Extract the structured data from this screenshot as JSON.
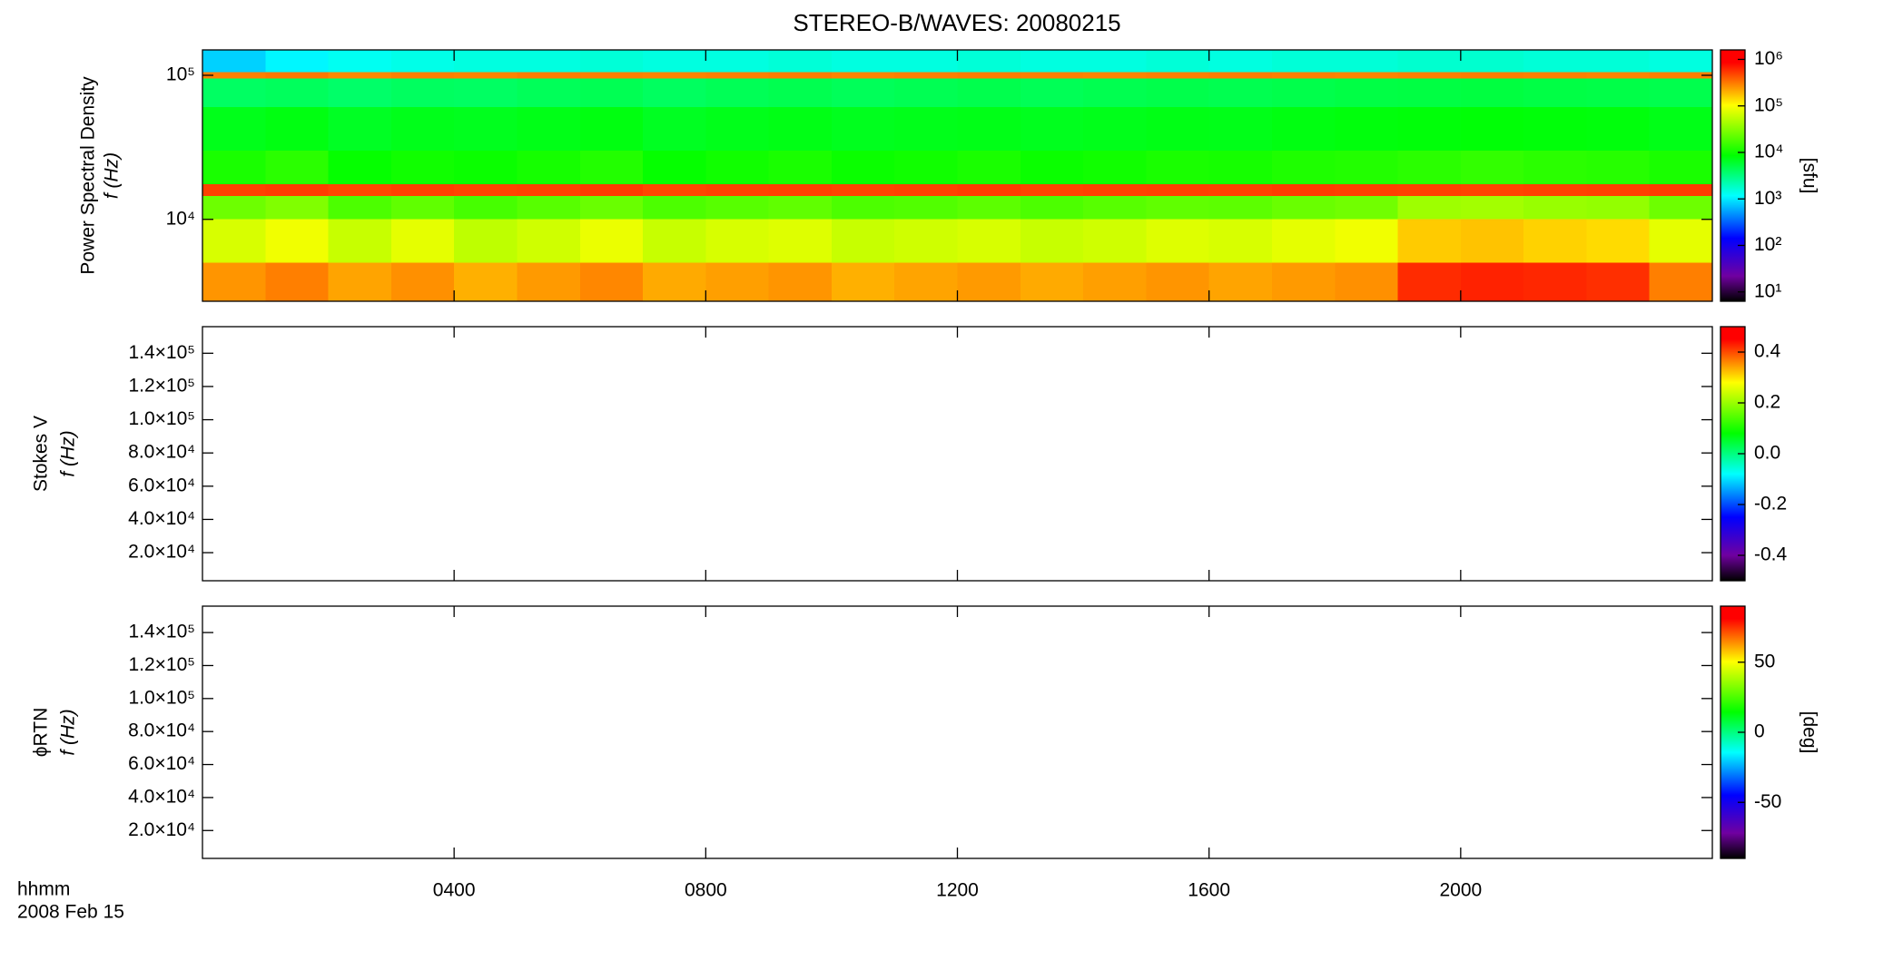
{
  "title": "STEREO-B/WAVES: 20080215",
  "time_axis": {
    "xlim": [
      0,
      24
    ],
    "xticks": [
      {
        "value": 4,
        "label": "0400"
      },
      {
        "value": 8,
        "label": "0800"
      },
      {
        "value": 12,
        "label": "1200"
      },
      {
        "value": 16,
        "label": "1600"
      },
      {
        "value": 20,
        "label": "2000"
      }
    ],
    "label": "hhmm",
    "date": "2008 Feb 15"
  },
  "chart_data": [
    {
      "type": "heatmap",
      "ylabel": "Power Spectral Density",
      "yunit": "f (Hz)",
      "ylog": true,
      "ylim": [
        2700,
        150000
      ],
      "yticks": [
        {
          "value": 10000,
          "label": "10⁴"
        },
        {
          "value": 100000,
          "label": "10⁵"
        }
      ],
      "x_bins": [
        0,
        1,
        2,
        3,
        4,
        5,
        6,
        7,
        8,
        9,
        10,
        11,
        12,
        13,
        14,
        15,
        16,
        17,
        18,
        19,
        20,
        21,
        22,
        23,
        24
      ],
      "y_bins": [
        2700,
        5000,
        10000,
        14500,
        17500,
        30000,
        60000,
        95000,
        105000,
        150000
      ],
      "z": [
        [
          250000,
          300000,
          220000,
          260000,
          200000,
          240000,
          280000,
          210000,
          230000,
          250000,
          200000,
          220000,
          240000,
          210000,
          230000,
          250000,
          220000,
          240000,
          260000,
          600000,
          650000,
          620000,
          580000,
          300000
        ],
        [
          70000,
          90000,
          60000,
          80000,
          55000,
          65000,
          85000,
          60000,
          70000,
          75000,
          60000,
          65000,
          70000,
          60000,
          65000,
          75000,
          70000,
          80000,
          90000,
          160000,
          170000,
          150000,
          140000,
          80000
        ],
        [
          25000,
          30000,
          18000,
          22000,
          17000,
          20000,
          24000,
          18000,
          20000,
          22000,
          18000,
          19000,
          21000,
          18000,
          20000,
          22000,
          21000,
          24000,
          26000,
          40000,
          42000,
          38000,
          36000,
          25000
        ],
        [
          500000,
          520000,
          480000,
          510000,
          490000,
          500000,
          530000,
          480000,
          500000,
          510000,
          490000,
          500000,
          520000,
          490000,
          500000,
          510000,
          500000,
          520000,
          510000,
          500000,
          490000,
          500000,
          510000,
          520000
        ],
        [
          11000,
          13000,
          9000,
          10000,
          9500,
          10500,
          12000,
          9000,
          10000,
          11000,
          9500,
          10000,
          11000,
          9500,
          10000,
          11000,
          10500,
          11500,
          12000,
          13000,
          14000,
          13000,
          12500,
          11000
        ],
        [
          7000,
          7500,
          6500,
          7000,
          6800,
          7200,
          7600,
          6600,
          7000,
          7300,
          6800,
          7000,
          7200,
          6800,
          7000,
          7300,
          7100,
          7500,
          7800,
          8000,
          8200,
          8000,
          7800,
          7200
        ],
        [
          4000,
          4200,
          3800,
          4100,
          4000,
          4300,
          4500,
          4100,
          4400,
          4600,
          4300,
          4500,
          4700,
          4400,
          4600,
          4800,
          4600,
          4800,
          5000,
          5100,
          5200,
          5000,
          4900,
          4700
        ],
        [
          300000,
          320000,
          280000,
          300000,
          290000,
          310000,
          300000,
          290000,
          300000,
          310000,
          290000,
          300000,
          310000,
          300000,
          290000,
          300000,
          310000,
          300000,
          290000,
          300000,
          310000,
          300000,
          290000,
          300000
        ],
        [
          800,
          1100,
          1300,
          1400,
          1500,
          1500,
          1600,
          1500,
          1500,
          1600,
          1500,
          1500,
          1600,
          1500,
          1500,
          1600,
          1500,
          1600,
          1600,
          1700,
          1700,
          1600,
          1600,
          1500
        ]
      ],
      "clog": true,
      "clim": [
        6.3,
        1600000
      ],
      "colormap": "rainbow",
      "cticks": [
        {
          "value": 10,
          "label": "10¹"
        },
        {
          "value": 100,
          "label": "10²"
        },
        {
          "value": 1000,
          "label": "10³"
        },
        {
          "value": 10000,
          "label": "10⁴"
        },
        {
          "value": 100000,
          "label": "10⁵"
        },
        {
          "value": 1000000,
          "label": "10⁶"
        }
      ],
      "clabel": "[sfu]"
    },
    {
      "type": "heatmap",
      "ylabel": "Stokes V",
      "yunit": "f (Hz)",
      "ylog": false,
      "ylim": [
        3100,
        156000
      ],
      "yticks": [
        {
          "value": 20000,
          "label": "2.0×10⁴"
        },
        {
          "value": 40000,
          "label": "4.0×10⁴"
        },
        {
          "value": 60000,
          "label": "6.0×10⁴"
        },
        {
          "value": 80000,
          "label": "8.0×10⁴"
        },
        {
          "value": 100000,
          "label": "1.0×10⁵"
        },
        {
          "value": 120000,
          "label": "1.2×10⁵"
        },
        {
          "value": 140000,
          "label": "1.4×10⁵"
        }
      ],
      "clog": false,
      "clim": [
        -0.5,
        0.5
      ],
      "colormap": "rainbow",
      "cticks": [
        -0.4,
        -0.2,
        {
          "value": 0,
          "label": "0.0"
        },
        0.2,
        0.4
      ]
    },
    {
      "type": "heatmap",
      "ylabel": "ϕRTN",
      "yunit": "f (Hz)",
      "ylog": false,
      "ylim": [
        3100,
        156000
      ],
      "yticks": [
        {
          "value": 20000,
          "label": "2.0×10⁴"
        },
        {
          "value": 40000,
          "label": "4.0×10⁴"
        },
        {
          "value": 60000,
          "label": "6.0×10⁴"
        },
        {
          "value": 80000,
          "label": "8.0×10⁴"
        },
        {
          "value": 100000,
          "label": "1.0×10⁵"
        },
        {
          "value": 120000,
          "label": "1.2×10⁵"
        },
        {
          "value": 140000,
          "label": "1.4×10⁵"
        }
      ],
      "clog": false,
      "clim": [
        -90,
        90
      ],
      "colormap": "rainbow",
      "cticks": [
        -50,
        0,
        50
      ],
      "clabel": "[deg]"
    }
  ]
}
